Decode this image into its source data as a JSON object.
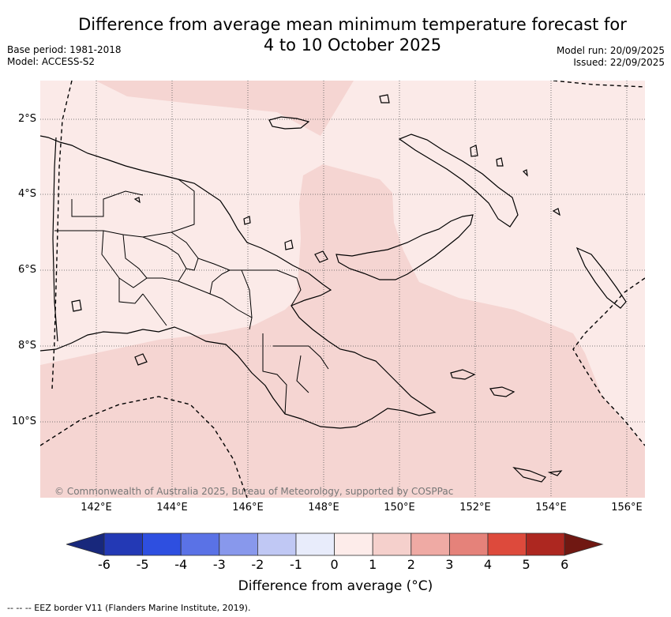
{
  "title": {
    "line1": "Difference from average mean minimum temperature forecast for",
    "line2": "4 to 10 October 2025"
  },
  "meta": {
    "base_period": "Base period: 1981-2018",
    "model": "Model: ACCESS-S2",
    "model_run": "Model run: 20/09/2025",
    "issued": "Issued: 22/09/2025"
  },
  "map": {
    "lat_labels": [
      "2°S",
      "4°S",
      "6°S",
      "8°S",
      "10°S"
    ],
    "lon_labels": [
      "142°E",
      "144°E",
      "146°E",
      "148°E",
      "150°E",
      "152°E",
      "154°E",
      "156°E"
    ],
    "copyright": "© Commonwealth of Australia 2025, Bureau of Meteorology, supported by COSPPac",
    "anomaly_zones": [
      {
        "range": "0 to 1",
        "color": "#fbeae8"
      },
      {
        "range": "1 to 2",
        "color": "#f5d5d2"
      }
    ]
  },
  "colorbar": {
    "title": "Difference from average (°C)",
    "ticks": [
      "-6",
      "-5",
      "-4",
      "-3",
      "-2",
      "-1",
      "0",
      "1",
      "2",
      "3",
      "4",
      "5",
      "6"
    ],
    "colors": [
      "#18287c",
      "#2339b5",
      "#2e4fe0",
      "#5a72e6",
      "#8898ec",
      "#c0c8f4",
      "#e8ecfb",
      "#fdecea",
      "#f5d0cc",
      "#efaaa4",
      "#e5827a",
      "#dd4a3c",
      "#ad2720",
      "#701812"
    ]
  },
  "footnote": "--  --  -- EEZ border V11 (Flanders Marine Institute, 2019)."
}
